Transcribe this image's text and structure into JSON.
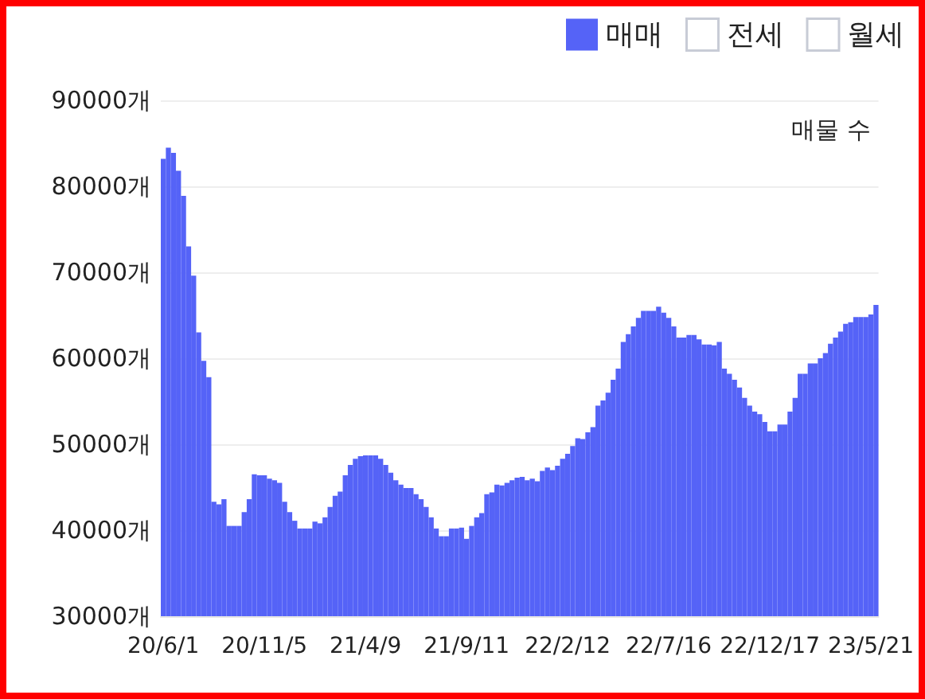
{
  "chart_data": {
    "type": "bar",
    "ylabel": "매물 수",
    "categories": [
      "20/6/1",
      null,
      null,
      null,
      null,
      null,
      null,
      null,
      null,
      null,
      null,
      null,
      null,
      null,
      null,
      null,
      null,
      null,
      null,
      null,
      "20/11/5",
      null,
      null,
      null,
      null,
      null,
      null,
      null,
      null,
      null,
      null,
      null,
      null,
      null,
      null,
      null,
      null,
      null,
      null,
      null,
      "21/4/9",
      null,
      null,
      null,
      null,
      null,
      null,
      null,
      null,
      null,
      null,
      null,
      null,
      null,
      null,
      null,
      null,
      null,
      null,
      null,
      "21/9/11",
      null,
      null,
      null,
      null,
      null,
      null,
      null,
      null,
      null,
      null,
      null,
      null,
      null,
      null,
      null,
      null,
      null,
      null,
      null,
      "22/2/12",
      null,
      null,
      null,
      null,
      null,
      null,
      null,
      null,
      null,
      null,
      null,
      null,
      null,
      null,
      null,
      null,
      null,
      null,
      null,
      "22/7/16",
      null,
      null,
      null,
      null,
      null,
      null,
      null,
      null,
      null,
      null,
      null,
      null,
      null,
      null,
      null,
      null,
      null,
      null,
      null,
      "22/12/17",
      null,
      null,
      null,
      null,
      null,
      null,
      null,
      null,
      null,
      null,
      null,
      null,
      null,
      null,
      null,
      null,
      null,
      null,
      null,
      "23/5/21",
      null
    ],
    "series": [
      {
        "name": "매매",
        "color": "#5563f7",
        "values": [
          83200,
          84500,
          83900,
          81800,
          78900,
          73000,
          69600,
          63000,
          59700,
          57800,
          43300,
          43000,
          43600,
          40500,
          40500,
          40500,
          42100,
          43600,
          46500,
          46400,
          46400,
          46000,
          45800,
          45500,
          43300,
          42100,
          41100,
          40200,
          40200,
          40200,
          41000,
          40800,
          41500,
          42700,
          44000,
          44500,
          46400,
          47600,
          48300,
          48600,
          48700,
          48700,
          48700,
          48300,
          47600,
          46700,
          45800,
          45300,
          44900,
          44900,
          44200,
          43600,
          42700,
          41500,
          40200,
          39300,
          39300,
          40200,
          40200,
          40300,
          39000,
          40500,
          41500,
          42000,
          44200,
          44400,
          45300,
          45200,
          45500,
          45800,
          46100,
          46200,
          45800,
          46000,
          45700,
          46900,
          47300,
          47000,
          47500,
          48300,
          48900,
          49800,
          50700,
          50600,
          51400,
          52000,
          54500,
          55100,
          56000,
          57500,
          58800,
          61900,
          62800,
          63700,
          64700,
          65500,
          65500,
          65500,
          66000,
          65300,
          64700,
          63700,
          62400,
          62400,
          62700,
          62700,
          62200,
          61600,
          61600,
          61500,
          61900,
          58800,
          58200,
          57500,
          56600,
          55400,
          54500,
          53800,
          53500,
          52600,
          51500,
          51500,
          52300,
          52300,
          53800,
          55400,
          58200,
          58200,
          59400,
          59400,
          60000,
          60600,
          61700,
          62400,
          63100,
          64000,
          64200,
          64800,
          64800,
          64800,
          65100,
          66200
        ]
      },
      {
        "name": "전세",
        "color": "#c8ccd6",
        "values": [
          null,
          null,
          null,
          null,
          null,
          null,
          null,
          null,
          null,
          null,
          null,
          null,
          null,
          null,
          null,
          null,
          null,
          null,
          null,
          null,
          null,
          null,
          null,
          null,
          null,
          null,
          null,
          null,
          null,
          null,
          null,
          null,
          null,
          null,
          null,
          null,
          null,
          null,
          null,
          null,
          null,
          null,
          null,
          null,
          null,
          null,
          null,
          null,
          null,
          null,
          null,
          null,
          null,
          null,
          null,
          null,
          null,
          null,
          null,
          null,
          null,
          null,
          null,
          null,
          null,
          null,
          null,
          null,
          null,
          null,
          null,
          null,
          null,
          null,
          null,
          null,
          null,
          null,
          null,
          null,
          null,
          null,
          null,
          null,
          null,
          null,
          null,
          null,
          null,
          null,
          null,
          null,
          null,
          null,
          null,
          null,
          null,
          null,
          null,
          null,
          null,
          null,
          null,
          null,
          null,
          null,
          null,
          null,
          null,
          null,
          null,
          null,
          null,
          null,
          null,
          null,
          null,
          null,
          null,
          null,
          null,
          null,
          null,
          null,
          null,
          null,
          null,
          null,
          null,
          null,
          null,
          null,
          null,
          null,
          null,
          null,
          null,
          null,
          null,
          null,
          null,
          null
        ]
      },
      {
        "name": "월세",
        "color": "#c8ccd6",
        "values": [
          null,
          null,
          null,
          null,
          null,
          null,
          null,
          null,
          null,
          null,
          null,
          null,
          null,
          null,
          null,
          null,
          null,
          null,
          null,
          null,
          null,
          null,
          null,
          null,
          null,
          null,
          null,
          null,
          null,
          null,
          null,
          null,
          null,
          null,
          null,
          null,
          null,
          null,
          null,
          null,
          null,
          null,
          null,
          null,
          null,
          null,
          null,
          null,
          null,
          null,
          null,
          null,
          null,
          null,
          null,
          null,
          null,
          null,
          null,
          null,
          null,
          null,
          null,
          null,
          null,
          null,
          null,
          null,
          null,
          null,
          null,
          null,
          null,
          null,
          null,
          null,
          null,
          null,
          null,
          null,
          null,
          null,
          null,
          null,
          null,
          null,
          null,
          null,
          null,
          null,
          null,
          null,
          null,
          null,
          null,
          null,
          null,
          null,
          null,
          null,
          null,
          null,
          null,
          null,
          null,
          null,
          null,
          null,
          null,
          null,
          null,
          null,
          null,
          null,
          null,
          null,
          null,
          null,
          null,
          null,
          null,
          null,
          null,
          null,
          null,
          null,
          null,
          null,
          null,
          null,
          null,
          null,
          null,
          null,
          null,
          null,
          null,
          null,
          null,
          null,
          null,
          null
        ]
      }
    ],
    "stacked": true,
    "ylim": [
      30000,
      90000
    ],
    "yticks": [
      {
        "value": 30000,
        "label": "30000개"
      },
      {
        "value": 40000,
        "label": "40000개"
      },
      {
        "value": 50000,
        "label": "50000개"
      },
      {
        "value": 60000,
        "label": "60000개"
      },
      {
        "value": 70000,
        "label": "70000개"
      },
      {
        "value": 80000,
        "label": "80000개"
      },
      {
        "value": 90000,
        "label": "90000개"
      }
    ],
    "grid": "y",
    "legend": "top right"
  }
}
